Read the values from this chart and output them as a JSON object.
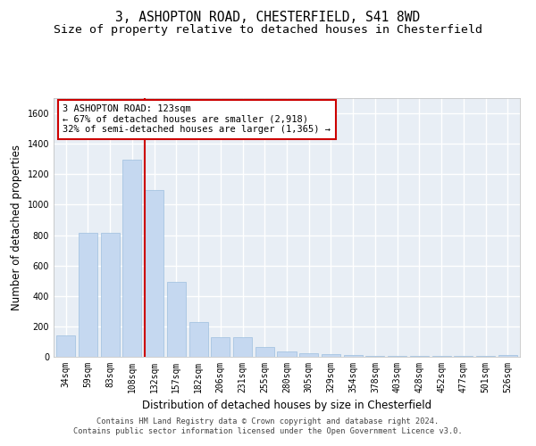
{
  "title": "3, ASHOPTON ROAD, CHESTERFIELD, S41 8WD",
  "subtitle": "Size of property relative to detached houses in Chesterfield",
  "xlabel": "Distribution of detached houses by size in Chesterfield",
  "ylabel": "Number of detached properties",
  "bar_color": "#c5d8f0",
  "bar_edge_color": "#9dbfdf",
  "vline_color": "#cc0000",
  "annotation_text": "3 ASHOPTON ROAD: 123sqm\n← 67% of detached houses are smaller (2,918)\n32% of semi-detached houses are larger (1,365) →",
  "annotation_box_color": "#ffffff",
  "annotation_box_edge_color": "#cc0000",
  "categories": [
    "34sqm",
    "59sqm",
    "83sqm",
    "108sqm",
    "132sqm",
    "157sqm",
    "182sqm",
    "206sqm",
    "231sqm",
    "255sqm",
    "280sqm",
    "305sqm",
    "329sqm",
    "354sqm",
    "378sqm",
    "403sqm",
    "428sqm",
    "452sqm",
    "477sqm",
    "501sqm",
    "526sqm"
  ],
  "values": [
    140,
    815,
    815,
    1295,
    1095,
    495,
    230,
    130,
    130,
    65,
    37,
    25,
    15,
    13,
    5,
    5,
    5,
    5,
    5,
    5,
    13
  ],
  "ylim": [
    0,
    1700
  ],
  "yticks": [
    0,
    200,
    400,
    600,
    800,
    1000,
    1200,
    1400,
    1600
  ],
  "background_color": "#e8eef5",
  "grid_color": "#ffffff",
  "footer_text": "Contains HM Land Registry data © Crown copyright and database right 2024.\nContains public sector information licensed under the Open Government Licence v3.0.",
  "title_fontsize": 10.5,
  "subtitle_fontsize": 9.5,
  "tick_fontsize": 7,
  "label_fontsize": 8.5,
  "footer_fontsize": 6.2
}
